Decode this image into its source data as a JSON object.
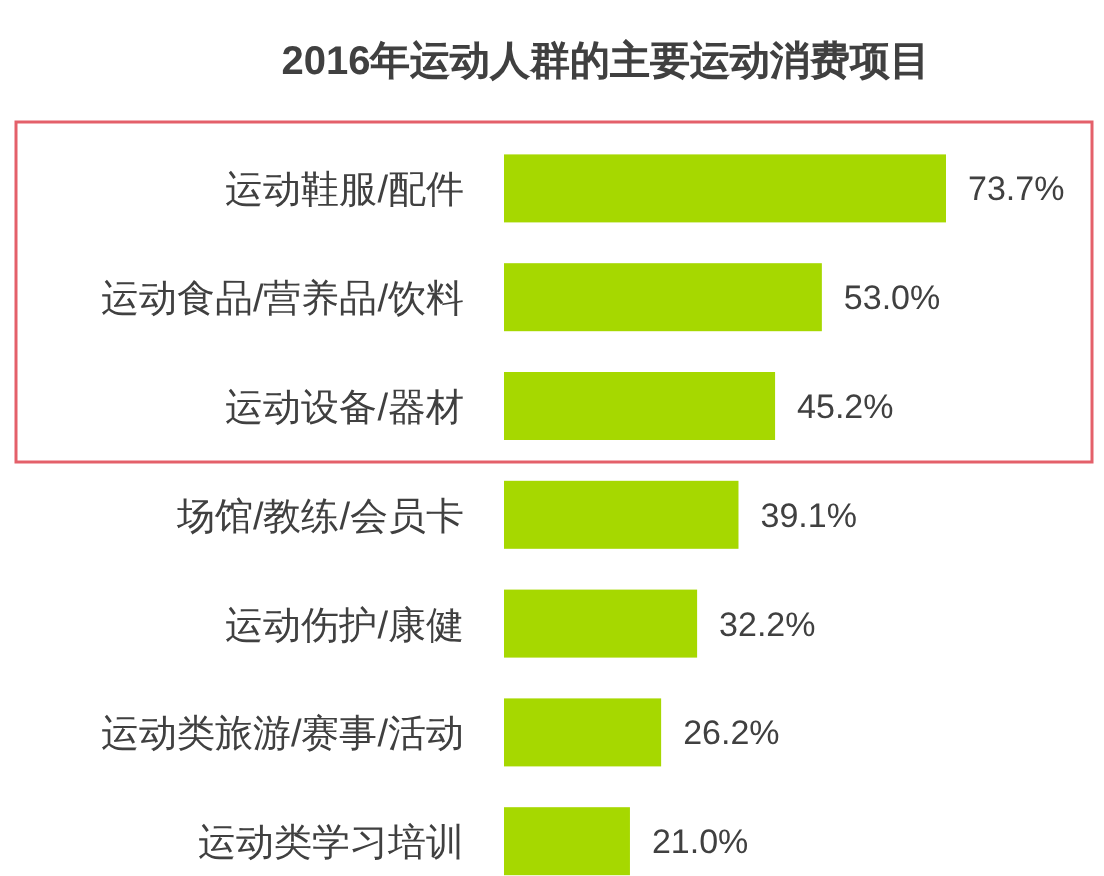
{
  "chart_data": {
    "type": "bar",
    "orientation": "horizontal",
    "title": "2016年运动人群的主要运动消费项目",
    "categories": [
      "运动鞋服/配件",
      "运动食品/营养品/饮料",
      "运动设备/器材",
      "场馆/教练/会员卡",
      "运动伤护/康健",
      "运动类旅游/赛事/活动",
      "运动类学习培训"
    ],
    "values": [
      73.7,
      53.0,
      45.2,
      39.1,
      32.2,
      26.2,
      21.0
    ],
    "value_labels": [
      "73.7%",
      "53.0%",
      "45.2%",
      "39.1%",
      "32.2%",
      "26.2%",
      "21.0%"
    ],
    "color": "#a6d800"
  }
}
